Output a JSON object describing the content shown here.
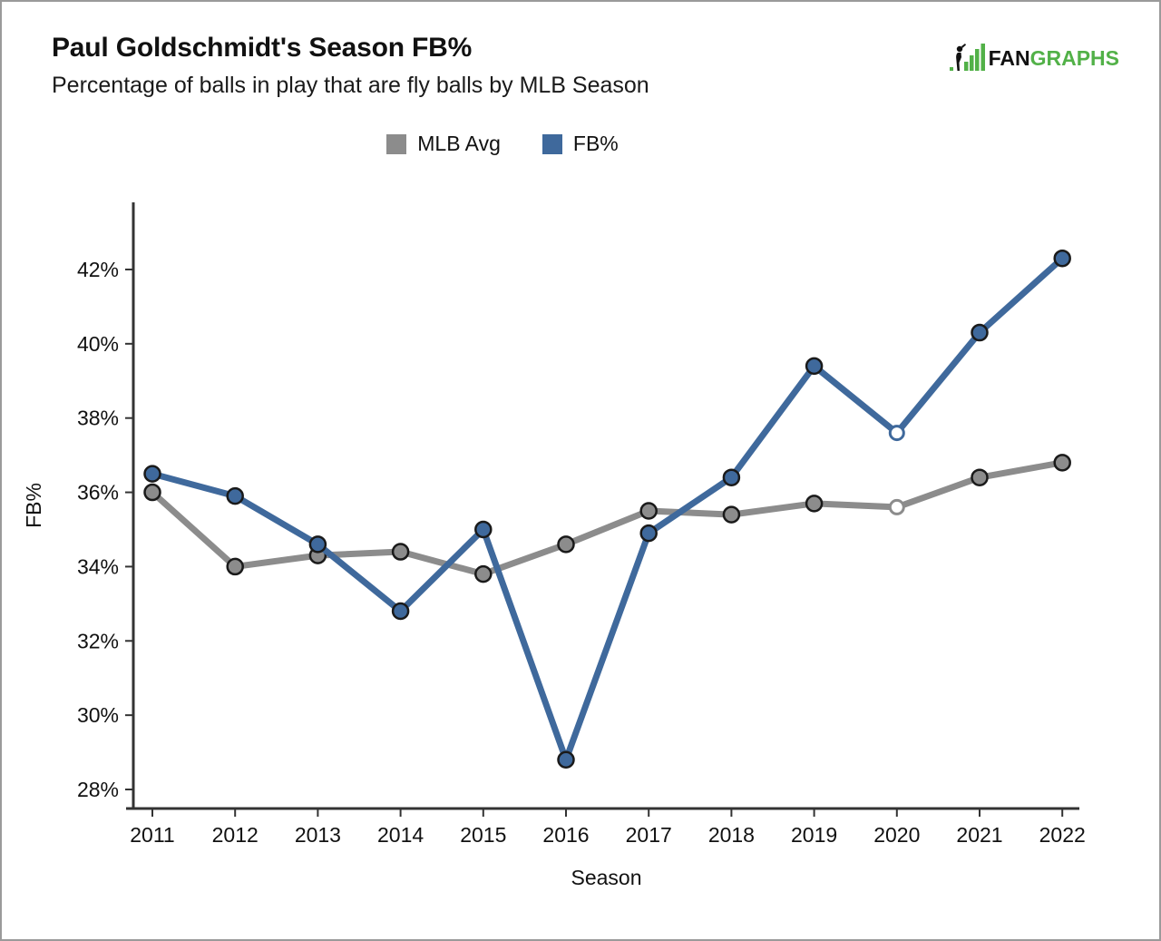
{
  "header": {
    "title": "Paul Goldschmidt's Season FB%",
    "subtitle": "Percentage of balls in play that are fly balls by MLB Season"
  },
  "logo": {
    "fan": "FAN",
    "graphs": "GRAPHS",
    "green": "#52b148",
    "dark": "#111111"
  },
  "chart_data": {
    "type": "line",
    "title": "Paul Goldschmidt's Season FB%",
    "xlabel": "Season",
    "ylabel": "FB%",
    "categories": [
      "2011",
      "2012",
      "2013",
      "2014",
      "2015",
      "2016",
      "2017",
      "2018",
      "2019",
      "2020",
      "2021",
      "2022"
    ],
    "series": [
      {
        "name": "MLB Avg",
        "color": "#8c8c8c",
        "values": [
          36.0,
          34.0,
          34.3,
          34.4,
          33.8,
          34.6,
          35.5,
          35.4,
          35.7,
          35.6,
          36.4,
          36.8
        ]
      },
      {
        "name": "FB%",
        "color": "#3f699c",
        "values": [
          36.5,
          35.9,
          34.6,
          32.8,
          35.0,
          28.8,
          34.9,
          36.4,
          39.4,
          37.6,
          40.3,
          42.3
        ]
      }
    ],
    "yticks": {
      "values": [
        28,
        30,
        32,
        34,
        36,
        38,
        40,
        42
      ],
      "labels": [
        "28%",
        "30%",
        "32%",
        "34%",
        "36%",
        "38%",
        "40%",
        "42%"
      ]
    },
    "ylim": [
      27.5,
      43.8
    ],
    "hollow_marker_category": "2020",
    "grid": false,
    "legend_position": "top-center",
    "axis_color": "#333333",
    "marker_outline": "#1a1a1a",
    "text_color": "#111111"
  }
}
